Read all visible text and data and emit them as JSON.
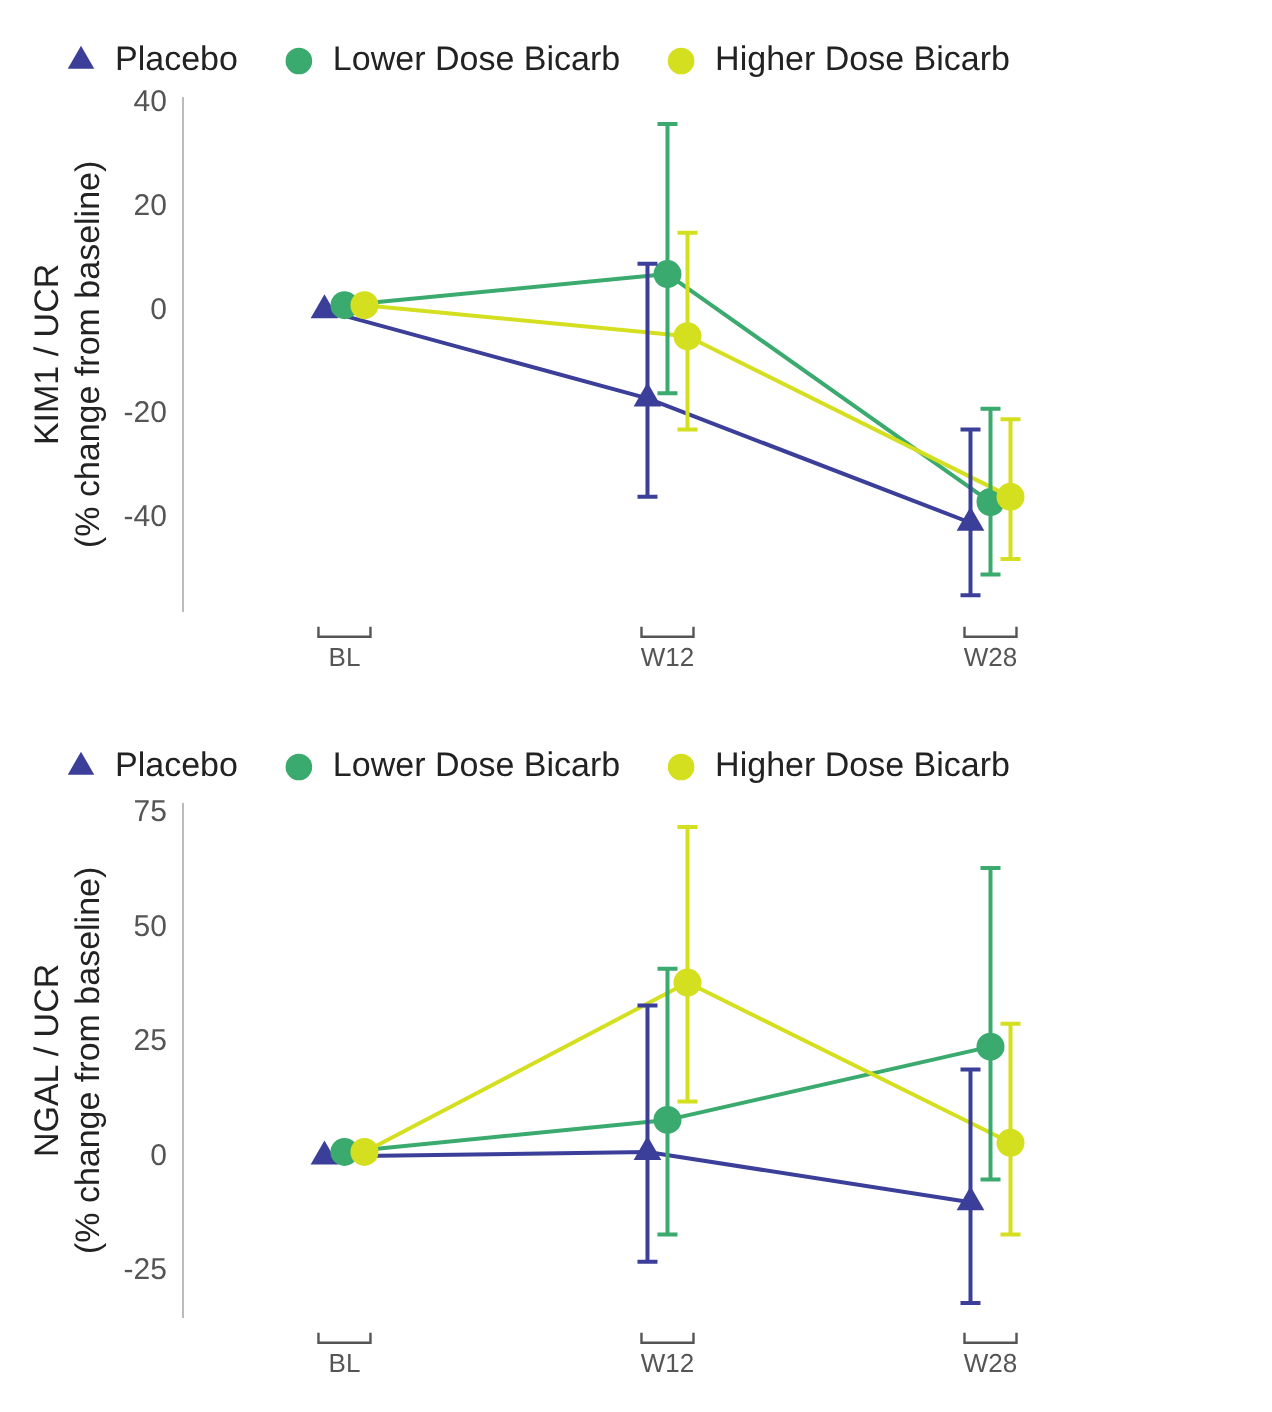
{
  "chart_data": [
    {
      "type": "line",
      "ylabel": "KIM1 / UCR\n(% change from baseline)",
      "categories": [
        "BL",
        "W12",
        "W28"
      ],
      "ylim": [
        -58,
        41
      ],
      "yticks": [
        -40,
        -20,
        0,
        20,
        40
      ],
      "grid": false,
      "legend": "top",
      "line_style": "solid",
      "series": [
        {
          "name": "Placebo",
          "color": "#3b3f99",
          "marker": "triangle",
          "values": [
            0,
            -17,
            -41
          ],
          "errors": [
            null,
            [
              -36,
              9
            ],
            [
              -55,
              -23
            ]
          ]
        },
        {
          "name": "Lower Dose Bicarb",
          "color": "#3aaa6e",
          "marker": "circle",
          "values": [
            1,
            7,
            -37
          ],
          "errors": [
            null,
            [
              -16,
              36
            ],
            [
              -51,
              -19
            ]
          ]
        },
        {
          "name": "Higher Dose Bicarb",
          "color": "#d4df1f",
          "marker": "circle",
          "values": [
            1,
            -5,
            -36
          ],
          "errors": [
            null,
            [
              -23,
              15
            ],
            [
              -48,
              -21
            ]
          ]
        }
      ]
    },
    {
      "type": "line",
      "ylabel": "NGAL / UCR\n(% change from baseline)",
      "categories": [
        "BL",
        "W12",
        "W28"
      ],
      "ylim": [
        -35,
        77
      ],
      "yticks": [
        -25,
        0,
        25,
        50,
        75
      ],
      "grid": false,
      "legend": "top",
      "line_style": "solid",
      "series": [
        {
          "name": "Placebo",
          "color": "#3b3f99",
          "marker": "triangle",
          "values": [
            0,
            1,
            -10
          ],
          "errors": [
            null,
            [
              -23,
              33
            ],
            [
              -32,
              19
            ]
          ]
        },
        {
          "name": "Lower Dose Bicarb",
          "color": "#3aaa6e",
          "marker": "circle",
          "values": [
            1,
            8,
            24
          ],
          "errors": [
            null,
            [
              -17,
              41
            ],
            [
              -5,
              63
            ]
          ]
        },
        {
          "name": "Higher Dose Bicarb",
          "color": "#d4df1f",
          "marker": "circle",
          "values": [
            1,
            38,
            3
          ],
          "errors": [
            null,
            [
              12,
              72
            ],
            [
              -17,
              29
            ]
          ]
        }
      ]
    }
  ]
}
